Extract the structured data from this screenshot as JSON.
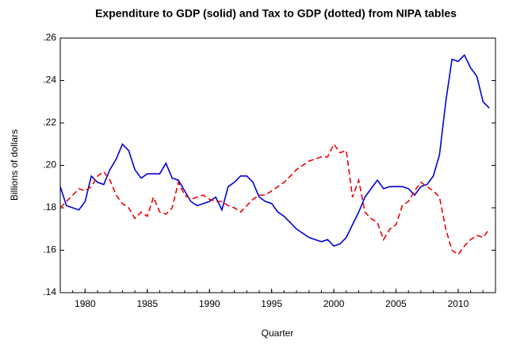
{
  "chart_data": {
    "type": "line",
    "title": "Expenditure to GDP (solid) and Tax to GDP (dotted) from NIPA tables",
    "x_label": "Quarter",
    "y_label": "Billions of dollars",
    "x": [
      1978,
      1978.5,
      1979,
      1979.5,
      1980,
      1980.5,
      1981,
      1981.5,
      1982,
      1982.5,
      1983,
      1983.5,
      1984,
      1984.5,
      1985,
      1985.5,
      1986,
      1986.5,
      1987,
      1987.5,
      1988,
      1988.5,
      1989,
      1989.5,
      1990,
      1990.5,
      1991,
      1991.5,
      1992,
      1992.5,
      1993,
      1993.5,
      1994,
      1994.5,
      1995,
      1995.5,
      1996,
      1996.5,
      1997,
      1997.5,
      1998,
      1998.5,
      1999,
      1999.5,
      2000,
      2000.5,
      2001,
      2001.5,
      2002,
      2002.5,
      2003,
      2003.5,
      2004,
      2004.5,
      2005,
      2005.5,
      2006,
      2006.5,
      2007,
      2007.5,
      2008,
      2008.5,
      2009,
      2009.5,
      2010,
      2010.5,
      2011,
      2011.5,
      2012,
      2012.5
    ],
    "series": [
      {
        "color": "#0000dd",
        "dash": "solid",
        "values": [
          0.19,
          0.181,
          0.18,
          0.179,
          0.183,
          0.195,
          0.192,
          0.191,
          0.198,
          0.203,
          0.21,
          0.207,
          0.198,
          0.194,
          0.196,
          0.196,
          0.196,
          0.201,
          0.194,
          0.193,
          0.188,
          0.183,
          0.181,
          0.182,
          0.183,
          0.185,
          0.179,
          0.19,
          0.192,
          0.195,
          0.195,
          0.192,
          0.185,
          0.183,
          0.182,
          0.178,
          0.176,
          0.173,
          0.17,
          0.168,
          0.166,
          0.165,
          0.164,
          0.165,
          0.162,
          0.163,
          0.166,
          0.172,
          0.178,
          0.185,
          0.189,
          0.193,
          0.189,
          0.19,
          0.19,
          0.19,
          0.189,
          0.186,
          0.19,
          0.191,
          0.195,
          0.205,
          0.23,
          0.25,
          0.249,
          0.252,
          0.246,
          0.242,
          0.23,
          0.227
        ]
      },
      {
        "color": "#ee0000",
        "dash": "dashed",
        "values": [
          0.18,
          0.183,
          0.186,
          0.189,
          0.188,
          0.19,
          0.195,
          0.197,
          0.193,
          0.186,
          0.182,
          0.18,
          0.175,
          0.178,
          0.176,
          0.185,
          0.178,
          0.177,
          0.18,
          0.192,
          0.186,
          0.184,
          0.185,
          0.186,
          0.184,
          0.183,
          0.183,
          0.181,
          0.18,
          0.178,
          0.181,
          0.184,
          0.186,
          0.186,
          0.188,
          0.19,
          0.192,
          0.195,
          0.198,
          0.2,
          0.202,
          0.203,
          0.204,
          0.204,
          0.21,
          0.206,
          0.207,
          0.185,
          0.193,
          0.178,
          0.175,
          0.173,
          0.165,
          0.17,
          0.172,
          0.181,
          0.183,
          0.188,
          0.192,
          0.19,
          0.188,
          0.185,
          0.17,
          0.16,
          0.158,
          0.162,
          0.165,
          0.167,
          0.166,
          0.17
        ]
      }
    ],
    "xlim": [
      1978,
      2013
    ],
    "xticks": [
      1980,
      1985,
      1990,
      1995,
      2000,
      2005,
      2010
    ],
    "ylim": [
      0.14,
      0.26
    ],
    "yticks": [
      {
        "value": 0.14,
        "label": ".14"
      },
      {
        "value": 0.16,
        "label": ".16"
      },
      {
        "value": 0.18,
        "label": ".18"
      },
      {
        "value": 0.2,
        "label": ".20"
      },
      {
        "value": 0.22,
        "label": ".22"
      },
      {
        "value": 0.24,
        "label": ".24"
      },
      {
        "value": 0.26,
        "label": ".26"
      }
    ],
    "grid": false
  }
}
